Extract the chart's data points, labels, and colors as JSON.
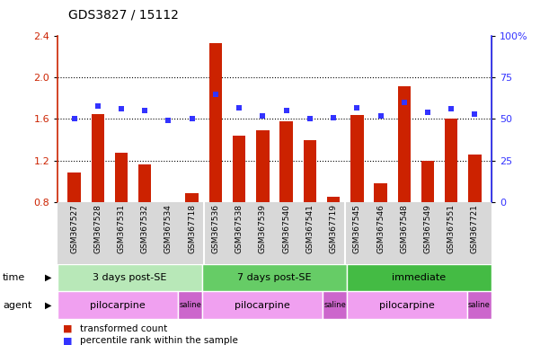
{
  "title": "GDS3827 / 15112",
  "samples": [
    "GSM367527",
    "GSM367528",
    "GSM367531",
    "GSM367532",
    "GSM367534",
    "GSM367718",
    "GSM367536",
    "GSM367538",
    "GSM367539",
    "GSM367540",
    "GSM367541",
    "GSM367719",
    "GSM367545",
    "GSM367546",
    "GSM367548",
    "GSM367549",
    "GSM367551",
    "GSM367721"
  ],
  "red_values": [
    1.08,
    1.65,
    1.27,
    1.16,
    0.8,
    0.88,
    2.33,
    1.44,
    1.49,
    1.58,
    1.4,
    0.85,
    1.64,
    0.98,
    1.92,
    1.2,
    1.6,
    1.26
  ],
  "blue_values_pct": [
    50,
    58,
    56,
    55,
    49,
    50,
    65,
    57,
    52,
    55,
    50,
    51,
    57,
    52,
    60,
    54,
    56,
    53
  ],
  "red_color": "#cc2200",
  "blue_color": "#3333ff",
  "ylim_left": [
    0.8,
    2.4
  ],
  "ylim_right": [
    0,
    100
  ],
  "yticks_left": [
    0.8,
    1.2,
    1.6,
    2.0,
    2.4
  ],
  "yticks_right": [
    0,
    25,
    50,
    75,
    100
  ],
  "dotted_vals": [
    1.2,
    1.6,
    2.0
  ],
  "groups": [
    {
      "label": "3 days post-SE",
      "start": 0,
      "end": 6,
      "color": "#b8e8b8"
    },
    {
      "label": "7 days post-SE",
      "start": 6,
      "end": 12,
      "color": "#66cc66"
    },
    {
      "label": "immediate",
      "start": 12,
      "end": 18,
      "color": "#44bb44"
    }
  ],
  "agents": [
    {
      "label": "pilocarpine",
      "start": 0,
      "end": 5,
      "color": "#f0a0f0"
    },
    {
      "label": "saline",
      "start": 5,
      "end": 6,
      "color": "#cc66cc"
    },
    {
      "label": "pilocarpine",
      "start": 6,
      "end": 11,
      "color": "#f0a0f0"
    },
    {
      "label": "saline",
      "start": 11,
      "end": 12,
      "color": "#cc66cc"
    },
    {
      "label": "pilocarpine",
      "start": 12,
      "end": 17,
      "color": "#f0a0f0"
    },
    {
      "label": "saline",
      "start": 17,
      "end": 18,
      "color": "#cc66cc"
    }
  ],
  "legend_red": "transformed count",
  "legend_blue": "percentile rank within the sample",
  "bg_color": "#ffffff",
  "label_time": "time",
  "label_agent": "agent",
  "sample_bg": "#d8d8d8"
}
